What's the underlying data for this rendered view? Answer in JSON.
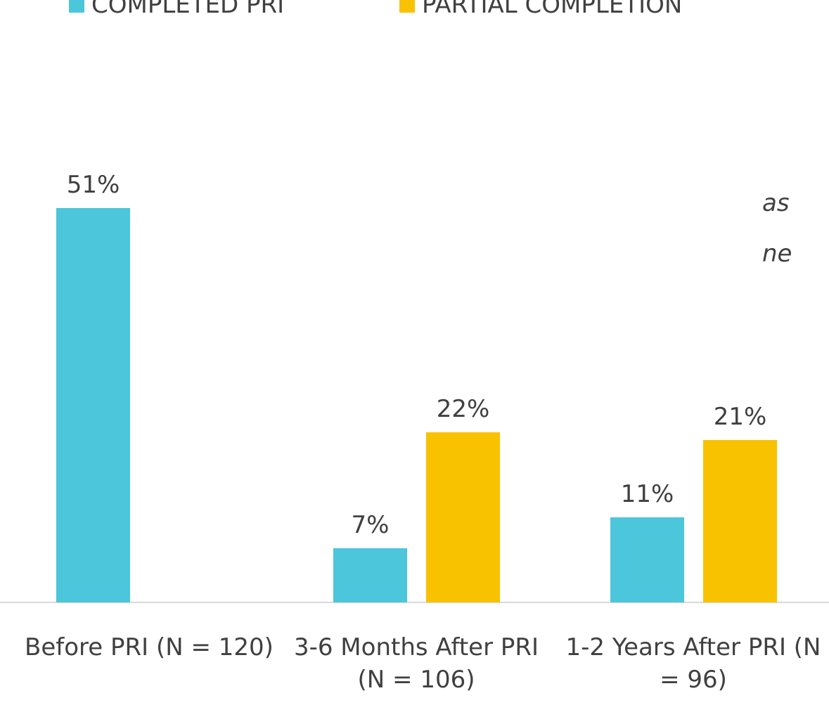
{
  "chart_data": {
    "type": "bar",
    "categories": [
      "Before PRI (N = 120)",
      "3-6 Months After PRI (N = 106)",
      "1-2 Years After PRI (N = 96)"
    ],
    "series": [
      {
        "name": "COMPLETED PRI",
        "color": "#4bc6da",
        "values": [
          51,
          7,
          11
        ],
        "value_labels": [
          "51%",
          "7%",
          "11%"
        ]
      },
      {
        "name": "PARTIAL COMPLETION",
        "color": "#f9c200",
        "values": [
          null,
          22,
          21
        ],
        "value_labels": [
          null,
          "22%",
          "21%"
        ]
      }
    ],
    "ylim": [
      0,
      60
    ],
    "legend": "top",
    "annotations": [
      "as",
      "ne"
    ]
  }
}
